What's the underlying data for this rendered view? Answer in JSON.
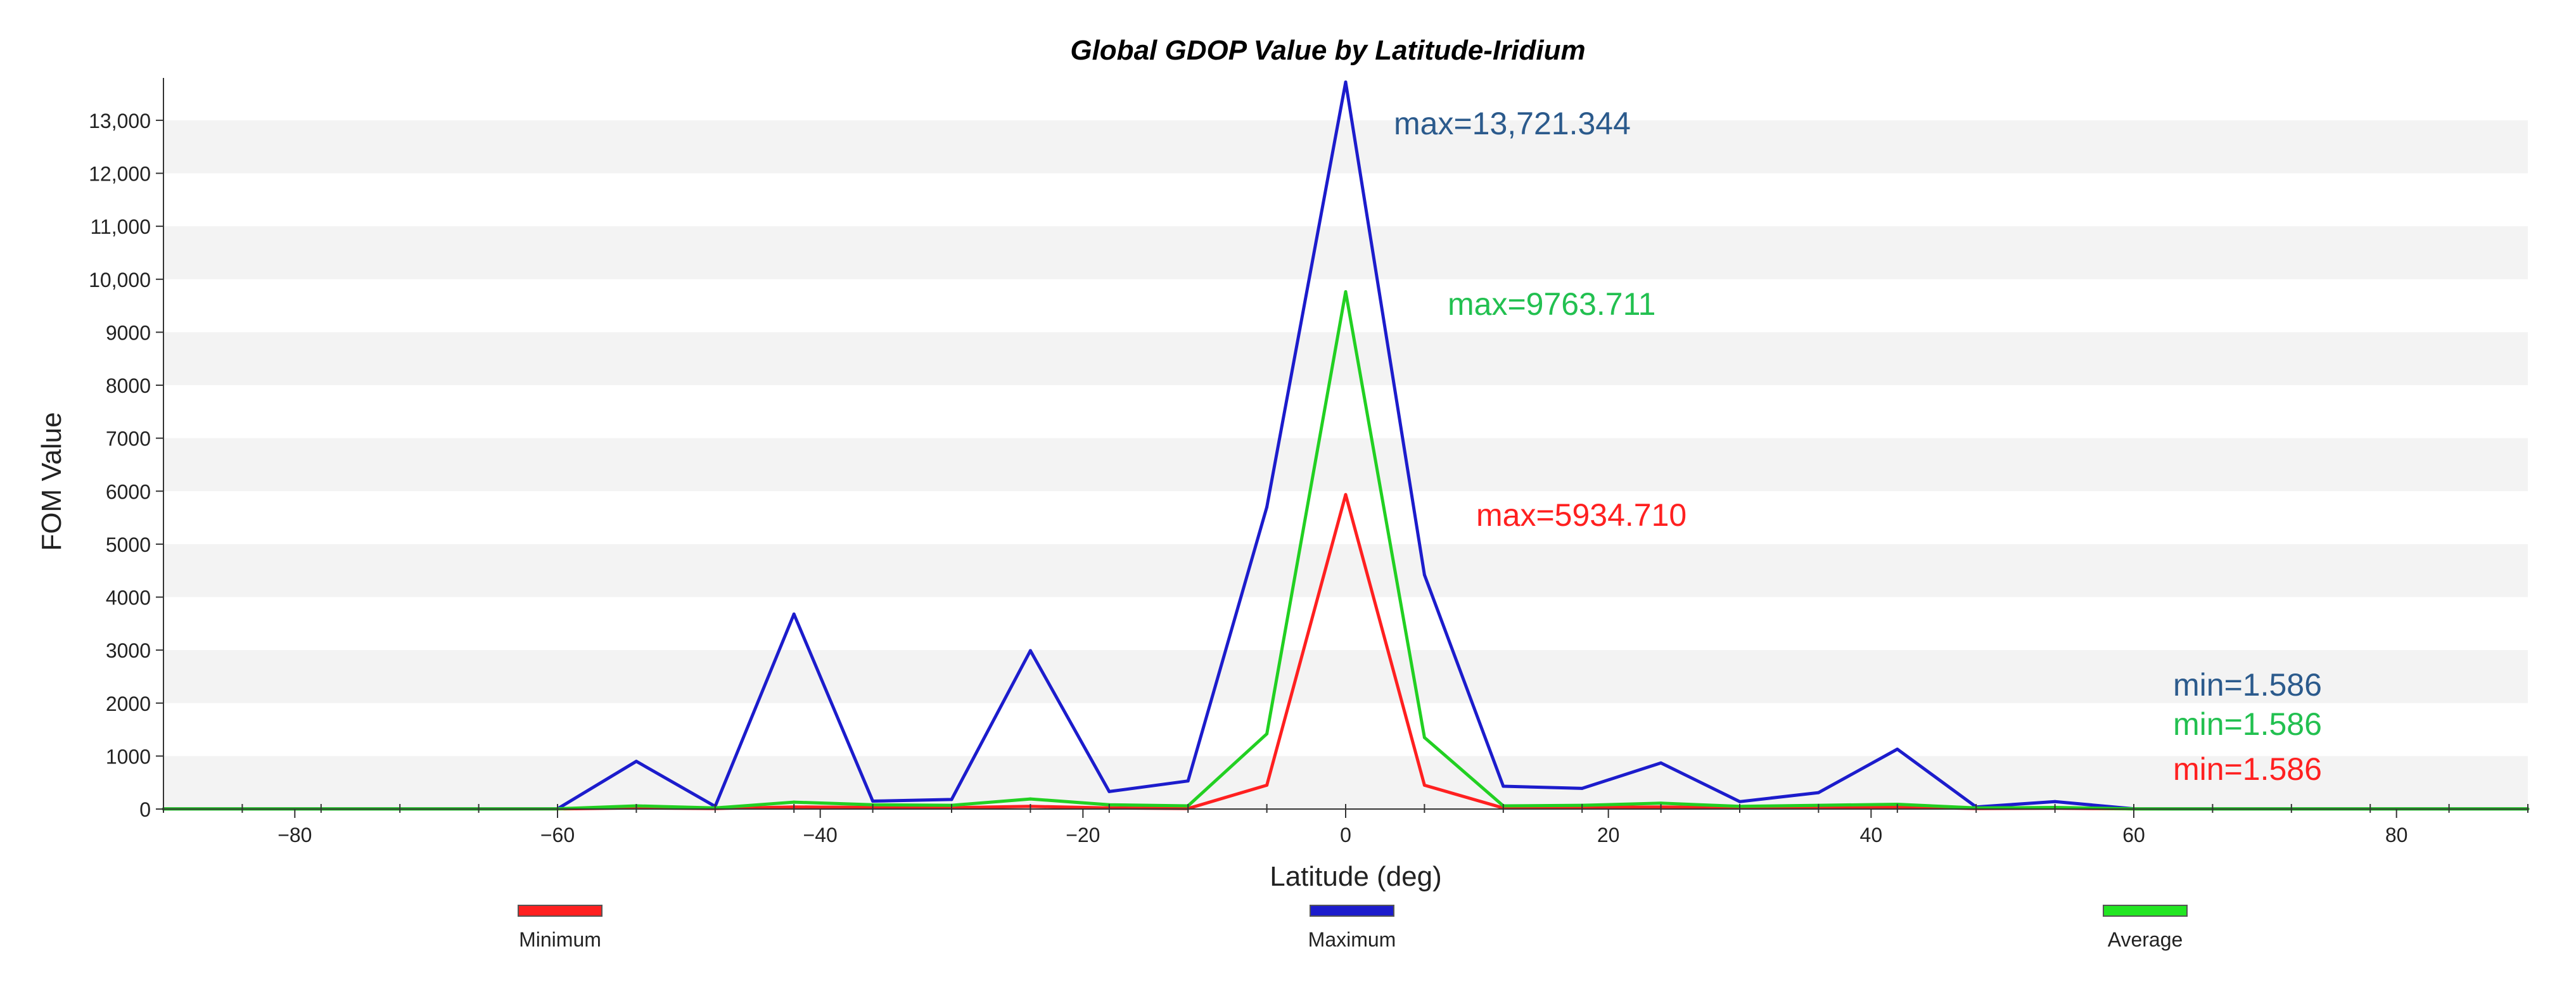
{
  "chart_data": {
    "type": "line",
    "title": "Global GDOP Value by Latitude-Iridium",
    "xlabel": "Latitude (deg)",
    "ylabel": "FOM Value",
    "xlim": [
      -90,
      90
    ],
    "ylim": [
      0,
      13800
    ],
    "x_ticks": [
      -80,
      -60,
      -40,
      -20,
      0,
      20,
      40,
      60,
      80
    ],
    "y_ticks": [
      0,
      1000,
      2000,
      3000,
      4000,
      5000,
      6000,
      7000,
      8000,
      9000,
      10000,
      11000,
      12000,
      13000
    ],
    "x_tick_labels": [
      "−80",
      "−60",
      "−40",
      "−20",
      "0",
      "20",
      "40",
      "60",
      "80"
    ],
    "y_tick_labels": [
      "0",
      "1000",
      "2000",
      "3000",
      "4000",
      "5000",
      "6000",
      "7000",
      "8000",
      "9000",
      "10,000",
      "11,000",
      "12,000",
      "13,000"
    ],
    "grid": "horizontal alternating bands",
    "legend_position": "bottom",
    "series": [
      {
        "name": "Minimum",
        "color": "#ff2020",
        "points": [
          [
            -90,
            2
          ],
          [
            -84,
            2
          ],
          [
            -78,
            2
          ],
          [
            -72,
            2
          ],
          [
            -66,
            2
          ],
          [
            -60,
            2
          ],
          [
            -54,
            20
          ],
          [
            -48,
            10
          ],
          [
            -42,
            40
          ],
          [
            -36,
            30
          ],
          [
            -30,
            25
          ],
          [
            -24,
            50
          ],
          [
            -18,
            20
          ],
          [
            -12,
            10
          ],
          [
            -6,
            450
          ],
          [
            0,
            5934.71
          ],
          [
            6,
            450
          ],
          [
            12,
            20
          ],
          [
            18,
            30
          ],
          [
            24,
            40
          ],
          [
            30,
            20
          ],
          [
            36,
            30
          ],
          [
            42,
            40
          ],
          [
            48,
            10
          ],
          [
            54,
            15
          ],
          [
            60,
            2
          ],
          [
            66,
            2
          ],
          [
            72,
            2
          ],
          [
            78,
            2
          ],
          [
            84,
            2
          ],
          [
            90,
            2
          ]
        ]
      },
      {
        "name": "Maximum",
        "color": "#1c1ccc",
        "points": [
          [
            -90,
            2
          ],
          [
            -84,
            2
          ],
          [
            -78,
            2
          ],
          [
            -72,
            2
          ],
          [
            -66,
            2
          ],
          [
            -60,
            5
          ],
          [
            -54,
            900
          ],
          [
            -48,
            50
          ],
          [
            -42,
            3680
          ],
          [
            -36,
            150
          ],
          [
            -30,
            180
          ],
          [
            -24,
            2990
          ],
          [
            -18,
            330
          ],
          [
            -12,
            530
          ],
          [
            -6,
            5700
          ],
          [
            0,
            13721.344
          ],
          [
            6,
            4420
          ],
          [
            12,
            430
          ],
          [
            18,
            390
          ],
          [
            24,
            870
          ],
          [
            30,
            140
          ],
          [
            36,
            310
          ],
          [
            42,
            1130
          ],
          [
            48,
            40
          ],
          [
            54,
            140
          ],
          [
            60,
            5
          ],
          [
            66,
            2
          ],
          [
            72,
            2
          ],
          [
            78,
            2
          ],
          [
            84,
            2
          ],
          [
            90,
            2
          ]
        ]
      },
      {
        "name": "Average",
        "color": "#22d022",
        "points": [
          [
            -90,
            2
          ],
          [
            -84,
            2
          ],
          [
            -78,
            2
          ],
          [
            -72,
            2
          ],
          [
            -66,
            2
          ],
          [
            -60,
            5
          ],
          [
            -54,
            60
          ],
          [
            -48,
            20
          ],
          [
            -42,
            130
          ],
          [
            -36,
            80
          ],
          [
            -30,
            70
          ],
          [
            -24,
            190
          ],
          [
            -18,
            80
          ],
          [
            -12,
            60
          ],
          [
            -6,
            1420
          ],
          [
            0,
            9763.711
          ],
          [
            6,
            1350
          ],
          [
            12,
            60
          ],
          [
            18,
            70
          ],
          [
            24,
            110
          ],
          [
            30,
            50
          ],
          [
            36,
            70
          ],
          [
            42,
            90
          ],
          [
            48,
            20
          ],
          [
            54,
            30
          ],
          [
            60,
            3
          ],
          [
            66,
            2
          ],
          [
            72,
            2
          ],
          [
            78,
            2
          ],
          [
            84,
            2
          ],
          [
            90,
            2
          ]
        ]
      }
    ],
    "annotations": [
      {
        "text": "max=13,721.344",
        "color": "#2b5a8c"
      },
      {
        "text": "max=9763.711",
        "color": "#22c050"
      },
      {
        "text": "max=5934.710",
        "color": "#ff2020"
      },
      {
        "text": "min=1.586",
        "color": "#2b5a8c"
      },
      {
        "text": "min=1.586",
        "color": "#22c050"
      },
      {
        "text": "min=1.586",
        "color": "#ff2020"
      }
    ]
  }
}
